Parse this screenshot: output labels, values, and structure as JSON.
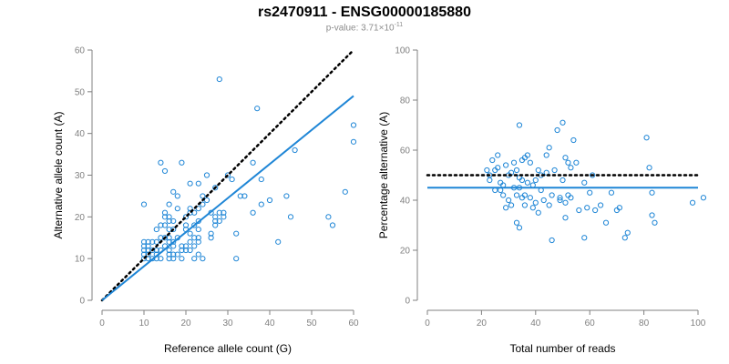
{
  "header": {
    "title": "rs2470911 - ENSG00000185880",
    "pvalue_prefix": "p-value: 3.71×10",
    "pvalue_exp": "-11"
  },
  "colors": {
    "points": "#1f86d6",
    "fit": "#1f86d6",
    "reference": "#000000",
    "axis": "#808080"
  },
  "chart_data": [
    {
      "type": "scatter",
      "title": "",
      "xlabel": "Reference allele count (G)",
      "ylabel": "Alternative allele count (A)",
      "xlim": [
        0,
        60
      ],
      "ylim": [
        0,
        60
      ],
      "xticks": [
        0,
        10,
        20,
        30,
        40,
        50,
        60
      ],
      "yticks": [
        0,
        10,
        20,
        30,
        40,
        50,
        60
      ],
      "grid": false,
      "points": [
        [
          10,
          10
        ],
        [
          10,
          11
        ],
        [
          10,
          12
        ],
        [
          10,
          13
        ],
        [
          10,
          14
        ],
        [
          10,
          23
        ],
        [
          11,
          10
        ],
        [
          11,
          11
        ],
        [
          11,
          12
        ],
        [
          11,
          13
        ],
        [
          11,
          14
        ],
        [
          12,
          10
        ],
        [
          12,
          12
        ],
        [
          12,
          14
        ],
        [
          13,
          10
        ],
        [
          13,
          11
        ],
        [
          13,
          12
        ],
        [
          13,
          14
        ],
        [
          13,
          17
        ],
        [
          14,
          10
        ],
        [
          14,
          12
        ],
        [
          14,
          15
        ],
        [
          14,
          18
        ],
        [
          14,
          33
        ],
        [
          15,
          13
        ],
        [
          15,
          15
        ],
        [
          15,
          18
        ],
        [
          15,
          20
        ],
        [
          15,
          21
        ],
        [
          15,
          31
        ],
        [
          16,
          10
        ],
        [
          16,
          11
        ],
        [
          16,
          12
        ],
        [
          16,
          14
        ],
        [
          16,
          15
        ],
        [
          16,
          17
        ],
        [
          16,
          19
        ],
        [
          16,
          20
        ],
        [
          16,
          23
        ],
        [
          17,
          10
        ],
        [
          17,
          11
        ],
        [
          17,
          13
        ],
        [
          17,
          14
        ],
        [
          17,
          17
        ],
        [
          17,
          19
        ],
        [
          17,
          26
        ],
        [
          18,
          11
        ],
        [
          18,
          15
        ],
        [
          18,
          22
        ],
        [
          18,
          25
        ],
        [
          19,
          10
        ],
        [
          19,
          12
        ],
        [
          19,
          13
        ],
        [
          19,
          33
        ],
        [
          20,
          12
        ],
        [
          20,
          13
        ],
        [
          20,
          17
        ],
        [
          20,
          18
        ],
        [
          20,
          20
        ],
        [
          21,
          12
        ],
        [
          21,
          14
        ],
        [
          21,
          16
        ],
        [
          21,
          21
        ],
        [
          21,
          22
        ],
        [
          21,
          28
        ],
        [
          22,
          10
        ],
        [
          22,
          13
        ],
        [
          22,
          15
        ],
        [
          22,
          18
        ],
        [
          22,
          21
        ],
        [
          23,
          11
        ],
        [
          23,
          14
        ],
        [
          23,
          15
        ],
        [
          23,
          17
        ],
        [
          23,
          19
        ],
        [
          23,
          22
        ],
        [
          23,
          28
        ],
        [
          24,
          10
        ],
        [
          24,
          23
        ],
        [
          24,
          25
        ],
        [
          25,
          24
        ],
        [
          25,
          30
        ],
        [
          26,
          15
        ],
        [
          26,
          16
        ],
        [
          26,
          21
        ],
        [
          27,
          18
        ],
        [
          27,
          19
        ],
        [
          27,
          20
        ],
        [
          27,
          27
        ],
        [
          28,
          19
        ],
        [
          28,
          21
        ],
        [
          28,
          53
        ],
        [
          29,
          20
        ],
        [
          29,
          21
        ],
        [
          30,
          30
        ],
        [
          31,
          29
        ],
        [
          32,
          10
        ],
        [
          32,
          16
        ],
        [
          33,
          25
        ],
        [
          34,
          25
        ],
        [
          36,
          21
        ],
        [
          36,
          33
        ],
        [
          37,
          46
        ],
        [
          38,
          23
        ],
        [
          38,
          29
        ],
        [
          40,
          24
        ],
        [
          42,
          14
        ],
        [
          44,
          25
        ],
        [
          45,
          20
        ],
        [
          46,
          36
        ],
        [
          54,
          20
        ],
        [
          55,
          18
        ],
        [
          58,
          26
        ],
        [
          60,
          38
        ],
        [
          60,
          42
        ]
      ],
      "fit_line": {
        "x": [
          0,
          60
        ],
        "y": [
          0,
          49
        ]
      },
      "reference_line": {
        "x": [
          0,
          60
        ],
        "y": [
          0,
          60
        ],
        "style": "dotted"
      }
    },
    {
      "type": "scatter",
      "title": "",
      "xlabel": "Total number of reads",
      "ylabel": "Percentage alternative (A)",
      "xlim": [
        0,
        100
      ],
      "ylim": [
        0,
        100
      ],
      "xticks": [
        0,
        20,
        40,
        60,
        80,
        100
      ],
      "yticks": [
        0,
        20,
        40,
        60,
        80,
        100
      ],
      "grid": false,
      "points": [
        [
          22,
          52
        ],
        [
          23,
          48
        ],
        [
          23,
          50
        ],
        [
          24,
          56
        ],
        [
          25,
          52
        ],
        [
          25,
          44
        ],
        [
          26,
          53
        ],
        [
          26,
          58
        ],
        [
          27,
          44
        ],
        [
          27,
          47
        ],
        [
          28,
          46
        ],
        [
          28,
          42
        ],
        [
          29,
          54
        ],
        [
          29,
          37
        ],
        [
          30,
          50
        ],
        [
          30,
          40
        ],
        [
          31,
          51
        ],
        [
          31,
          38
        ],
        [
          32,
          45
        ],
        [
          32,
          55
        ],
        [
          33,
          42
        ],
        [
          33,
          31
        ],
        [
          33,
          52
        ],
        [
          34,
          29
        ],
        [
          34,
          49
        ],
        [
          34,
          70
        ],
        [
          34,
          45
        ],
        [
          35,
          48
        ],
        [
          35,
          56
        ],
        [
          35,
          41
        ],
        [
          36,
          57
        ],
        [
          36,
          42
        ],
        [
          36,
          38
        ],
        [
          37,
          58
        ],
        [
          37,
          47
        ],
        [
          38,
          55
        ],
        [
          38,
          41
        ],
        [
          39,
          46
        ],
        [
          39,
          37
        ],
        [
          40,
          39
        ],
        [
          40,
          48
        ],
        [
          41,
          35
        ],
        [
          41,
          52
        ],
        [
          42,
          50
        ],
        [
          42,
          44
        ],
        [
          43,
          40
        ],
        [
          44,
          58
        ],
        [
          44,
          51
        ],
        [
          45,
          61
        ],
        [
          45,
          38
        ],
        [
          46,
          24
        ],
        [
          46,
          42
        ],
        [
          47,
          52
        ],
        [
          48,
          68
        ],
        [
          49,
          41
        ],
        [
          49,
          40
        ],
        [
          50,
          71
        ],
        [
          50,
          48
        ],
        [
          51,
          39
        ],
        [
          51,
          57
        ],
        [
          51,
          33
        ],
        [
          52,
          42
        ],
        [
          52,
          55
        ],
        [
          53,
          53
        ],
        [
          53,
          41
        ],
        [
          54,
          64
        ],
        [
          55,
          55
        ],
        [
          56,
          36
        ],
        [
          58,
          47
        ],
        [
          58,
          25
        ],
        [
          59,
          37
        ],
        [
          60,
          43
        ],
        [
          61,
          50
        ],
        [
          62,
          36
        ],
        [
          64,
          38
        ],
        [
          66,
          31
        ],
        [
          68,
          43
        ],
        [
          70,
          36
        ],
        [
          71,
          37
        ],
        [
          73,
          25
        ],
        [
          74,
          27
        ],
        [
          81,
          65
        ],
        [
          82,
          53
        ],
        [
          83,
          43
        ],
        [
          83,
          34
        ],
        [
          84,
          31
        ],
        [
          98,
          39
        ],
        [
          102,
          41
        ]
      ],
      "fit_line": {
        "x": [
          0,
          100
        ],
        "y": [
          45,
          45
        ]
      },
      "reference_line": {
        "x": [
          0,
          100
        ],
        "y": [
          50,
          50
        ],
        "style": "dotted"
      }
    }
  ]
}
